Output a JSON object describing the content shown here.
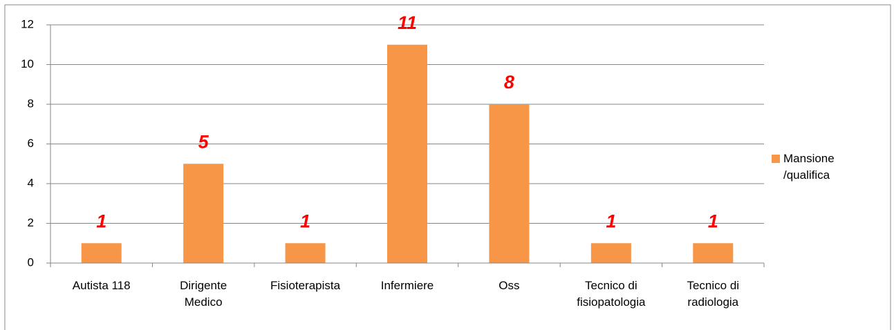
{
  "chart_data": {
    "type": "bar",
    "categories": [
      "Autista 118",
      "Dirigente Medico",
      "Fisioterapista",
      "Infermiere",
      "Oss",
      "Tecnico di fisiopatologia",
      "Tecnico di radiologia"
    ],
    "series": [
      {
        "name": "Mansione /qualifica",
        "color": "#f79646",
        "values": [
          1,
          5,
          1,
          11,
          8,
          1,
          1
        ]
      }
    ],
    "ylim": [
      0,
      12
    ],
    "yticks": [
      0,
      2,
      4,
      6,
      8,
      10,
      12
    ],
    "grid": true,
    "legend": "right",
    "value_label_color": "#ff0000"
  }
}
